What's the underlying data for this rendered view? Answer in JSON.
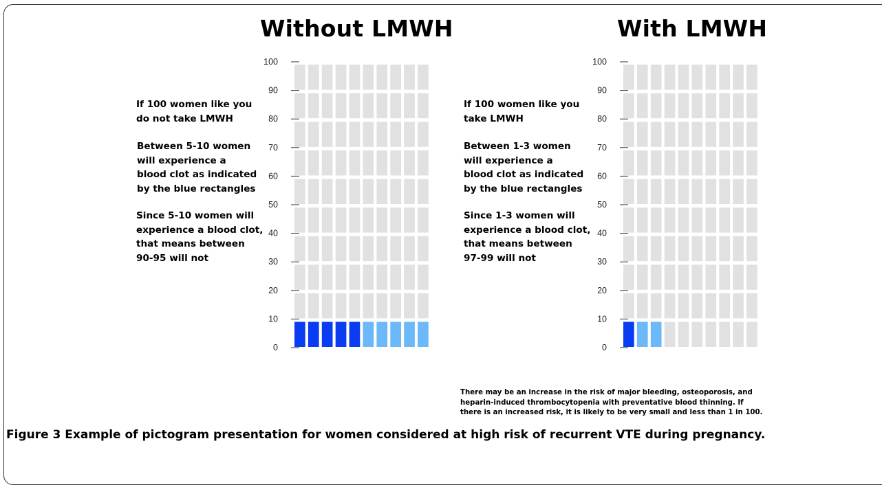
{
  "chart_data": [
    {
      "type": "pictogram",
      "title": "Without LMWH",
      "y_ticks": [
        0,
        10,
        20,
        30,
        40,
        50,
        60,
        70,
        80,
        90,
        100
      ],
      "ylim": [
        0,
        100
      ],
      "columns": 10,
      "rows": 10,
      "dark_blue_count": 5,
      "light_blue_count": 5,
      "grey_count": 90,
      "description": {
        "p1": "If 100 women like you\ndo not take LMWH",
        "p2": "Between 5-10 women\nwill experience a\nblood clot as indicated\nby the blue rectangles",
        "p3": "Since 5-10 women will\nexperience a blood clot,\nthat means between\n90-95 will not"
      }
    },
    {
      "type": "pictogram",
      "title": "With LMWH",
      "y_ticks": [
        0,
        10,
        20,
        30,
        40,
        50,
        60,
        70,
        80,
        90,
        100
      ],
      "ylim": [
        0,
        100
      ],
      "columns": 10,
      "rows": 10,
      "dark_blue_count": 1,
      "light_blue_count": 2,
      "grey_count": 97,
      "description": {
        "p1": "If 100 women like you\ntake LMWH",
        "p2": "Between 1-3 women\nwill experience a\nblood clot as indicated\nby the blue rectangles",
        "p3": "Since 1-3 women will\nexperience a blood clot,\nthat means between\n97-99 will not"
      }
    }
  ],
  "colors": {
    "dark_blue": "#0a3cf2",
    "light_blue": "#6cb8f8",
    "grey": "#e1e1e1",
    "tick": "#333333"
  },
  "note": "There may be an increase in the risk of major bleeding, osteoporosis, and\nheparin-induced thrombocytopenia with preventative blood thinning. If\nthere is an increased risk, it is likely to be very small and less than 1 in 100.",
  "caption": {
    "label": "Figure 3",
    "text": " Example of pictogram presentation for women considered at high risk of recurrent VTE during pregnancy."
  }
}
